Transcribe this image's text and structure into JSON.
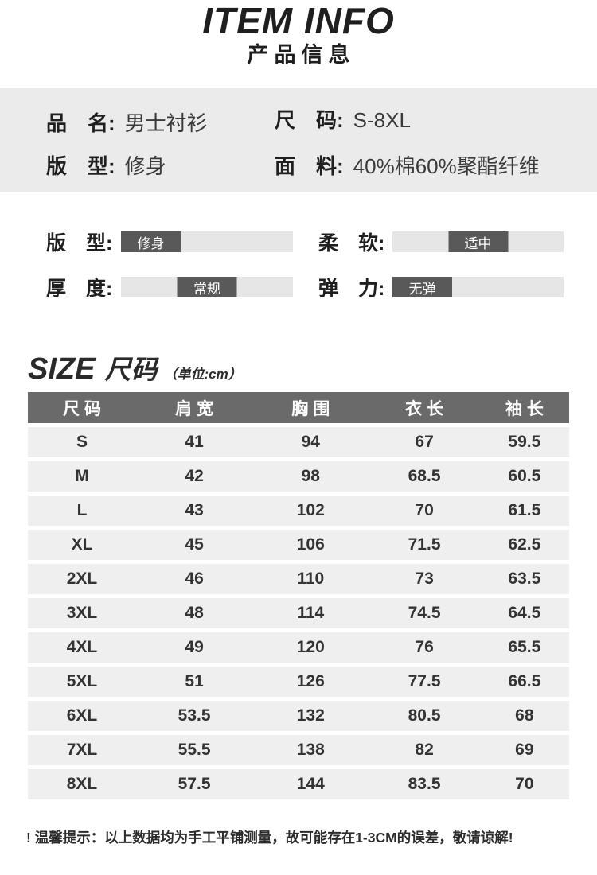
{
  "header": {
    "title": "ITEM INFO",
    "subtitle": "产品信息"
  },
  "info": {
    "items": [
      {
        "label": "品　名:",
        "value": "男士衬衫"
      },
      {
        "label": "尺　码:",
        "value": "S-8XL"
      },
      {
        "label": "版　型:",
        "value": "修身"
      },
      {
        "label": "面　料:",
        "value": "40%棉60%聚酯纤维"
      }
    ]
  },
  "attributes": {
    "items": [
      {
        "label": "版　型:",
        "value": "修身",
        "position": "left"
      },
      {
        "label": "柔　软:",
        "value": "适中",
        "position": "center"
      },
      {
        "label": "厚　度:",
        "value": "常规",
        "position": "center"
      },
      {
        "label": "弹　力:",
        "value": "无弹",
        "position": "left"
      }
    ]
  },
  "size_section": {
    "title_en": "SIZE",
    "title_zh": "尺码",
    "unit_note": "（单位:cm）"
  },
  "size_table": {
    "headers": [
      "尺码",
      "肩宽",
      "胸围",
      "衣长",
      "袖长"
    ],
    "rows": [
      [
        "S",
        "41",
        "94",
        "67",
        "59.5"
      ],
      [
        "M",
        "42",
        "98",
        "68.5",
        "60.5"
      ],
      [
        "L",
        "43",
        "102",
        "70",
        "61.5"
      ],
      [
        "XL",
        "45",
        "106",
        "71.5",
        "62.5"
      ],
      [
        "2XL",
        "46",
        "110",
        "73",
        "63.5"
      ],
      [
        "3XL",
        "48",
        "114",
        "74.5",
        "64.5"
      ],
      [
        "4XL",
        "49",
        "120",
        "76",
        "65.5"
      ],
      [
        "5XL",
        "51",
        "126",
        "77.5",
        "66.5"
      ],
      [
        "6XL",
        "53.5",
        "132",
        "80.5",
        "68"
      ],
      [
        "7XL",
        "55.5",
        "138",
        "82",
        "69"
      ],
      [
        "8XL",
        "57.5",
        "144",
        "83.5",
        "70"
      ]
    ]
  },
  "footer": {
    "note": "! 温馨提示：以上数据均为手工平铺测量，故可能存在1-3CM的误差，敬请谅解!"
  },
  "colors": {
    "page_bg": "#ffffff",
    "band_bg": "#ebebeb",
    "track_bg": "#e6e6e6",
    "badge_bg": "#595959",
    "badge_text": "#ffffff",
    "header_bg": "#6a6a6a",
    "header_text": "#ffffff",
    "row_bg": "#efefef",
    "text": "#262626",
    "value_text": "#3a3a3a"
  }
}
